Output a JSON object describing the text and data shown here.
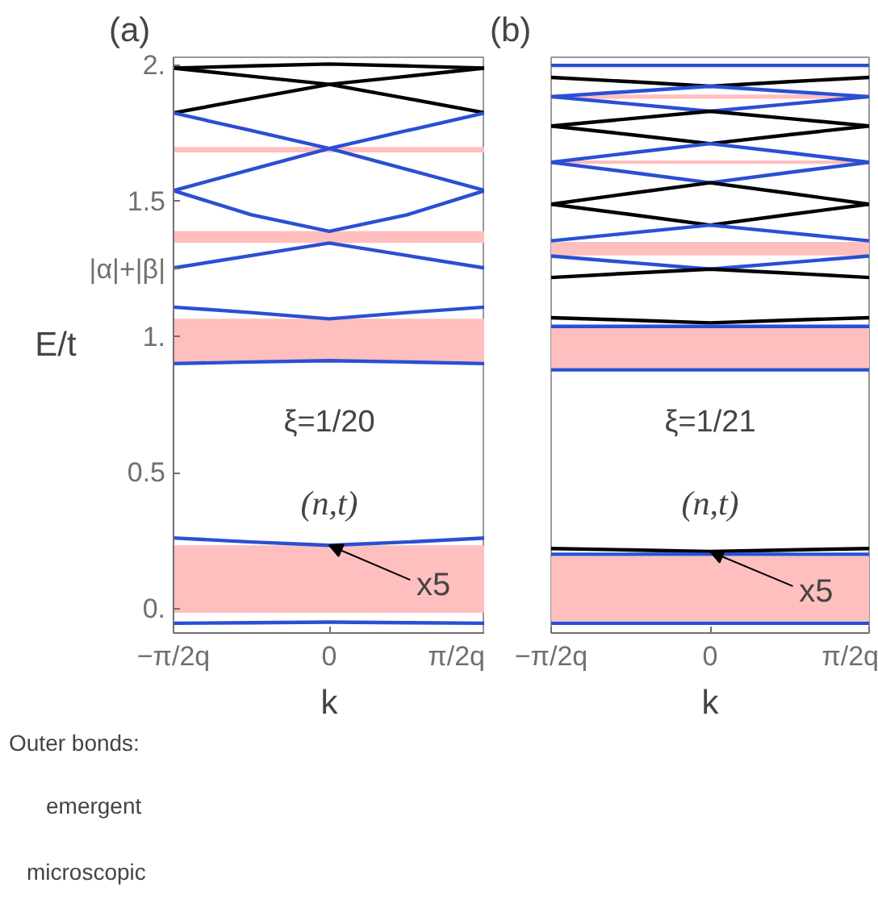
{
  "chart_data": [
    {
      "type": "line",
      "title": "(a)",
      "xlabel": "k",
      "ylabel": "E/t",
      "grid": false,
      "categories": [
        "−π/2q",
        null,
        "0",
        null,
        "π/2q"
      ],
      "ylim": [
        -0.09,
        2.03
      ],
      "yticks": [
        {
          "value": 0,
          "label": "0."
        },
        0.5,
        {
          "value": 1,
          "label": "1."
        },
        {
          "value": 1.25,
          "label": "|α|+|β|"
        },
        1.5,
        {
          "value": 2,
          "label": "2."
        }
      ],
      "bands": [
        {
          "axis": "y",
          "from": -0.016,
          "to": 0.233,
          "color": "#ffbfbf"
        },
        {
          "axis": "y",
          "from": 0.908,
          "to": 1.067,
          "color": "#ffbfbf"
        },
        {
          "axis": "y",
          "from": 1.346,
          "to": 1.39,
          "color": "#ffbfbf"
        },
        {
          "axis": "y",
          "from": 1.68,
          "to": 1.7,
          "color": "#ffbfbf"
        }
      ],
      "series": [
        {
          "color": "#000000",
          "values": [
            1.99,
            1.998,
            2.005,
            1.998,
            1.99
          ]
        },
        {
          "color": "#000000",
          "values": [
            1.99,
            1.96,
            1.93,
            1.878,
            1.825
          ]
        },
        {
          "color": "#000000",
          "values": [
            1.825,
            1.878,
            1.93,
            1.96,
            1.99
          ]
        },
        {
          "color": "#2a4fd4",
          "values": [
            1.825,
            1.76,
            1.694,
            1.617,
            1.539
          ]
        },
        {
          "color": "#2a4fd4",
          "values": [
            1.539,
            1.617,
            1.694,
            1.76,
            1.825
          ]
        },
        {
          "color": "#2a4fd4",
          "values": [
            1.539,
            1.45,
            1.389,
            1.45,
            1.539
          ]
        },
        {
          "color": "#2a4fd4",
          "values": [
            1.254,
            1.3,
            1.346,
            1.3,
            1.254
          ]
        },
        {
          "color": "#2a4fd4",
          "values": [
            1.11,
            1.09,
            1.067,
            1.09,
            1.11
          ]
        },
        {
          "color": "#2a4fd4",
          "values": [
            0.902,
            0.908,
            0.913,
            0.908,
            0.902
          ]
        },
        {
          "color": "#2a4fd4",
          "values": [
            0.26,
            0.245,
            0.233,
            0.245,
            0.26
          ]
        },
        {
          "color": "#2a4fd4",
          "values": [
            -0.054,
            -0.052,
            -0.05,
            -0.052,
            -0.054
          ]
        }
      ],
      "annotations": [
        "ξ=1/20",
        "(n,t)",
        {
          "text": "x5",
          "x": "0",
          "y": 0.233
        }
      ]
    },
    {
      "type": "line",
      "title": "(b)",
      "xlabel": "k",
      "grid": false,
      "tick_labels": "x",
      "categories": [
        "−π/2q",
        null,
        "0",
        null,
        "π/2q"
      ],
      "ylim": [
        -0.09,
        2.03
      ],
      "bands": [
        {
          "axis": "y",
          "from": -0.046,
          "to": 0.192,
          "color": "#ffbfbf"
        },
        {
          "axis": "y",
          "from": 0.885,
          "to": 1.033,
          "color": "#ffbfbf"
        },
        {
          "axis": "y",
          "from": 1.3,
          "to": 1.35,
          "color": "#ffbfbf"
        },
        {
          "axis": "y",
          "from": 1.637,
          "to": 1.65,
          "color": "#ffbfbf"
        },
        {
          "axis": "y",
          "from": 1.877,
          "to": 1.893,
          "color": "#ffbfbf"
        }
      ],
      "series": [
        {
          "color": "#2a4fd4",
          "values": [
            2.0,
            2.0,
            2.0,
            2.0,
            2.0
          ]
        },
        {
          "color": "#000000",
          "values": [
            1.956,
            1.94,
            1.923,
            1.94,
            1.956
          ]
        },
        {
          "color": "#2a4fd4",
          "values": [
            1.885,
            1.904,
            1.923,
            1.904,
            1.885
          ]
        },
        {
          "color": "#2a4fd4",
          "values": [
            1.885,
            1.858,
            1.831,
            1.858,
            1.885
          ]
        },
        {
          "color": "#000000",
          "values": [
            1.777,
            1.804,
            1.831,
            1.804,
            1.777
          ]
        },
        {
          "color": "#000000",
          "values": [
            1.777,
            1.745,
            1.712,
            1.745,
            1.777
          ]
        },
        {
          "color": "#2a4fd4",
          "values": [
            1.643,
            1.678,
            1.712,
            1.678,
            1.643
          ]
        },
        {
          "color": "#2a4fd4",
          "values": [
            1.643,
            1.606,
            1.568,
            1.606,
            1.643
          ]
        },
        {
          "color": "#000000",
          "values": [
            1.489,
            1.529,
            1.568,
            1.529,
            1.489
          ]
        },
        {
          "color": "#000000",
          "values": [
            1.489,
            1.451,
            1.412,
            1.451,
            1.489
          ]
        },
        {
          "color": "#2a4fd4",
          "values": [
            1.354,
            1.383,
            1.412,
            1.383,
            1.354
          ]
        },
        {
          "color": "#2a4fd4",
          "values": [
            1.298,
            1.274,
            1.25,
            1.274,
            1.298
          ]
        },
        {
          "color": "#000000",
          "values": [
            1.219,
            1.235,
            1.25,
            1.235,
            1.219
          ]
        },
        {
          "color": "#000000",
          "values": [
            1.071,
            1.062,
            1.052,
            1.062,
            1.071
          ]
        },
        {
          "color": "#2a4fd4",
          "values": [
            1.039,
            1.039,
            1.039,
            1.039,
            1.039
          ]
        },
        {
          "color": "#2a4fd4",
          "values": [
            0.879,
            0.879,
            0.879,
            0.879,
            0.879
          ]
        },
        {
          "color": "#000000",
          "values": [
            0.221,
            0.216,
            0.21,
            0.216,
            0.221
          ]
        },
        {
          "color": "#2a4fd4",
          "values": [
            0.2,
            0.2,
            0.2,
            0.2,
            0.2
          ]
        },
        {
          "color": "#2a4fd4",
          "values": [
            -0.054,
            -0.054,
            -0.054,
            -0.054,
            -0.054
          ]
        }
      ],
      "annotations": [
        "ξ=1/21",
        "(n,t)",
        {
          "text": "x5",
          "x": "0",
          "y": 0.21
        }
      ]
    },
    {
      "type": "other",
      "annotations": [
        "Outer bonds:",
        "emergent",
        "microscopic"
      ]
    }
  ]
}
